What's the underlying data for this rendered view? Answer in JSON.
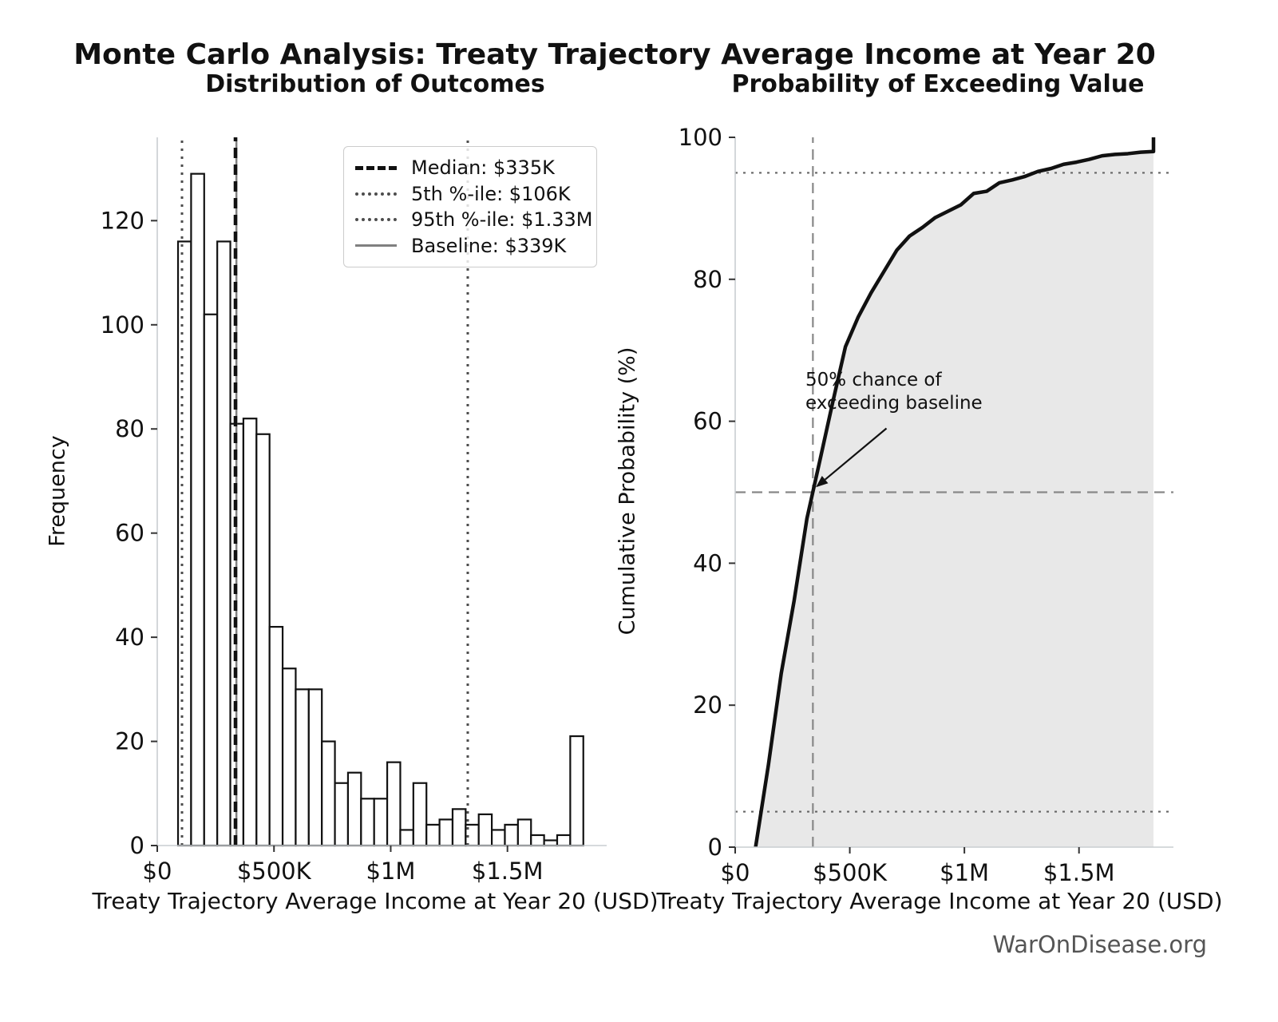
{
  "figure": {
    "title": "Monte Carlo Analysis: Treaty Trajectory Average Income at Year 20",
    "watermark": "WarOnDisease.org"
  },
  "chart_data": [
    {
      "type": "bar",
      "subtype": "histogram",
      "title": "Distribution of Outcomes",
      "xlabel": "Treaty Trajectory Average Income at Year 20 (USD)",
      "ylabel": "Frequency",
      "x_unit": "USD thousands",
      "bin_start": 89,
      "bin_width": 56,
      "counts": [
        116,
        129,
        102,
        116,
        81,
        82,
        79,
        42,
        34,
        30,
        30,
        20,
        12,
        14,
        9,
        9,
        16,
        3,
        12,
        4,
        5,
        7,
        4,
        6,
        3,
        4,
        5,
        2,
        1,
        2,
        21
      ],
      "bar_fill": "#ffffff",
      "bar_edge": "#111111",
      "xlim": [
        0,
        1925
      ],
      "ylim": [
        0,
        136
      ],
      "grid": false,
      "xticks": [
        {
          "value": 0,
          "label": "$0"
        },
        {
          "value": 500,
          "label": "$500K"
        },
        {
          "value": 1000,
          "label": "$1M"
        },
        {
          "value": 1500,
          "label": "$1.5M"
        }
      ],
      "yticks": [
        0,
        20,
        40,
        60,
        80,
        100,
        120
      ],
      "ref_lines": [
        {
          "label": "Median: $335K",
          "value": 335,
          "orientation": "vertical",
          "style": "dashed",
          "color": "#111111",
          "width": 4.5
        },
        {
          "label": "5th %-ile: $106K",
          "value": 106,
          "orientation": "vertical",
          "style": "dotted",
          "color": "#4d4d4d",
          "width": 3
        },
        {
          "label": "95th %-ile: $1.33M",
          "value": 1330,
          "orientation": "vertical",
          "style": "dotted",
          "color": "#4d4d4d",
          "width": 3
        },
        {
          "label": "Baseline: $339K",
          "value": 339,
          "orientation": "vertical",
          "style": "solid",
          "color": "#808080",
          "width": 2.5
        }
      ],
      "legend_position": "upper right"
    },
    {
      "type": "line",
      "subtype": "empirical-cdf",
      "title": "Probability of Exceeding Value",
      "xlabel": "Treaty Trajectory Average Income at Year 20 (USD)",
      "ylabel": "Cumulative Probability (%)",
      "x_unit": "USD thousands",
      "xlim": [
        0,
        1912
      ],
      "ylim": [
        0,
        100
      ],
      "grid": false,
      "xticks": [
        {
          "value": 0,
          "label": "$0"
        },
        {
          "value": 500,
          "label": "$500K"
        },
        {
          "value": 1000,
          "label": "$1M"
        },
        {
          "value": 1500,
          "label": "$1.5M"
        }
      ],
      "yticks": [
        0,
        20,
        40,
        60,
        80,
        100
      ],
      "series": [
        {
          "name": "cumulative-probability",
          "color": "#111111",
          "width": 4.5,
          "fill": "#e8e8e8",
          "points": [
            [
              89,
              0
            ],
            [
              145,
              11.6
            ],
            [
              201,
              24.5
            ],
            [
              257,
              34.7
            ],
            [
              313,
              46.3
            ],
            [
              369,
              54.4
            ],
            [
              425,
              62.6
            ],
            [
              481,
              70.5
            ],
            [
              537,
              74.7
            ],
            [
              593,
              78.1
            ],
            [
              649,
              81.1
            ],
            [
              705,
              84.1
            ],
            [
              761,
              86.1
            ],
            [
              817,
              87.3
            ],
            [
              873,
              88.7
            ],
            [
              929,
              89.6
            ],
            [
              985,
              90.5
            ],
            [
              1041,
              92.1
            ],
            [
              1097,
              92.4
            ],
            [
              1153,
              93.6
            ],
            [
              1209,
              94.0
            ],
            [
              1265,
              94.5
            ],
            [
              1321,
              95.2
            ],
            [
              1377,
              95.6
            ],
            [
              1433,
              96.2
            ],
            [
              1489,
              96.5
            ],
            [
              1545,
              96.9
            ],
            [
              1601,
              97.4
            ],
            [
              1657,
              97.6
            ],
            [
              1713,
              97.7
            ],
            [
              1769,
              97.9
            ],
            [
              1825,
              98.0
            ],
            [
              1825,
              100
            ]
          ]
        }
      ],
      "hlines": [
        {
          "value": 95,
          "style": "dotted",
          "color": "#666666",
          "width": 2.2
        },
        {
          "value": 5,
          "style": "dotted",
          "color": "#666666",
          "width": 2.2
        },
        {
          "value": 50,
          "style": "dashed",
          "color": "#888888",
          "width": 2.2
        }
      ],
      "vlines": [
        {
          "value": 339,
          "style": "dashed",
          "color": "#888888",
          "width": 2.2
        }
      ],
      "annotation": {
        "text": "50% chance of\nexceeding baseline",
        "text_xy": [
          316,
          66
        ],
        "arrow_from": [
          660,
          59
        ],
        "arrow_to": [
          352,
          50.7
        ],
        "arrow_color": "#111111"
      }
    }
  ]
}
